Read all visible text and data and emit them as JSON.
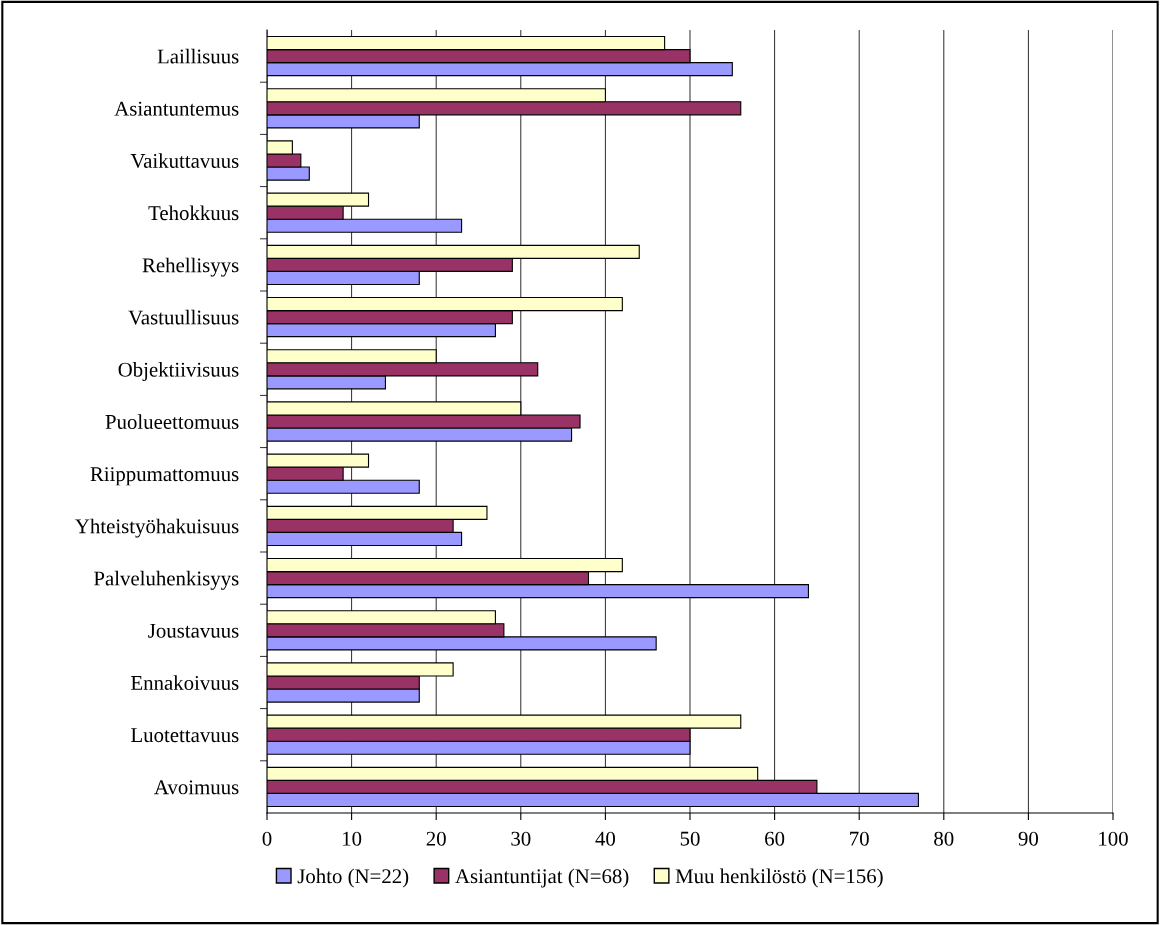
{
  "chart_data": {
    "type": "bar",
    "orientation": "horizontal",
    "categories": [
      "Laillisuus",
      "Asiantuntemus",
      "Vaikuttavuus",
      "Tehokkuus",
      "Rehellisyys",
      "Vastuullisuus",
      "Objektiivisuus",
      "Puolueettomuus",
      "Riippumattomuus",
      "Yhteistyöhakuisuus",
      "Palveluhenkisyys",
      "Joustavuus",
      "Ennakoivuus",
      "Luotettavuus",
      "Avoimuus"
    ],
    "series": [
      {
        "name": "Johto (N=22)",
        "color": "#9999ff",
        "values": [
          55,
          18,
          5,
          23,
          18,
          27,
          14,
          36,
          18,
          23,
          64,
          46,
          18,
          50,
          77
        ]
      },
      {
        "name": "Asiantuntijat (N=68)",
        "color": "#993366",
        "values": [
          50,
          56,
          4,
          9,
          29,
          29,
          32,
          37,
          9,
          22,
          38,
          28,
          18,
          50,
          65
        ]
      },
      {
        "name": "Muu henkilöstö (N=156)",
        "color": "#ffffcc",
        "values": [
          47,
          40,
          3,
          12,
          44,
          42,
          20,
          30,
          12,
          26,
          42,
          27,
          22,
          56,
          58
        ]
      }
    ],
    "xlim": [
      0,
      100
    ],
    "xticks": [
      0,
      10,
      20,
      30,
      40,
      50,
      60,
      70,
      80,
      90,
      100
    ],
    "grid": "x",
    "legend": "bottom"
  }
}
